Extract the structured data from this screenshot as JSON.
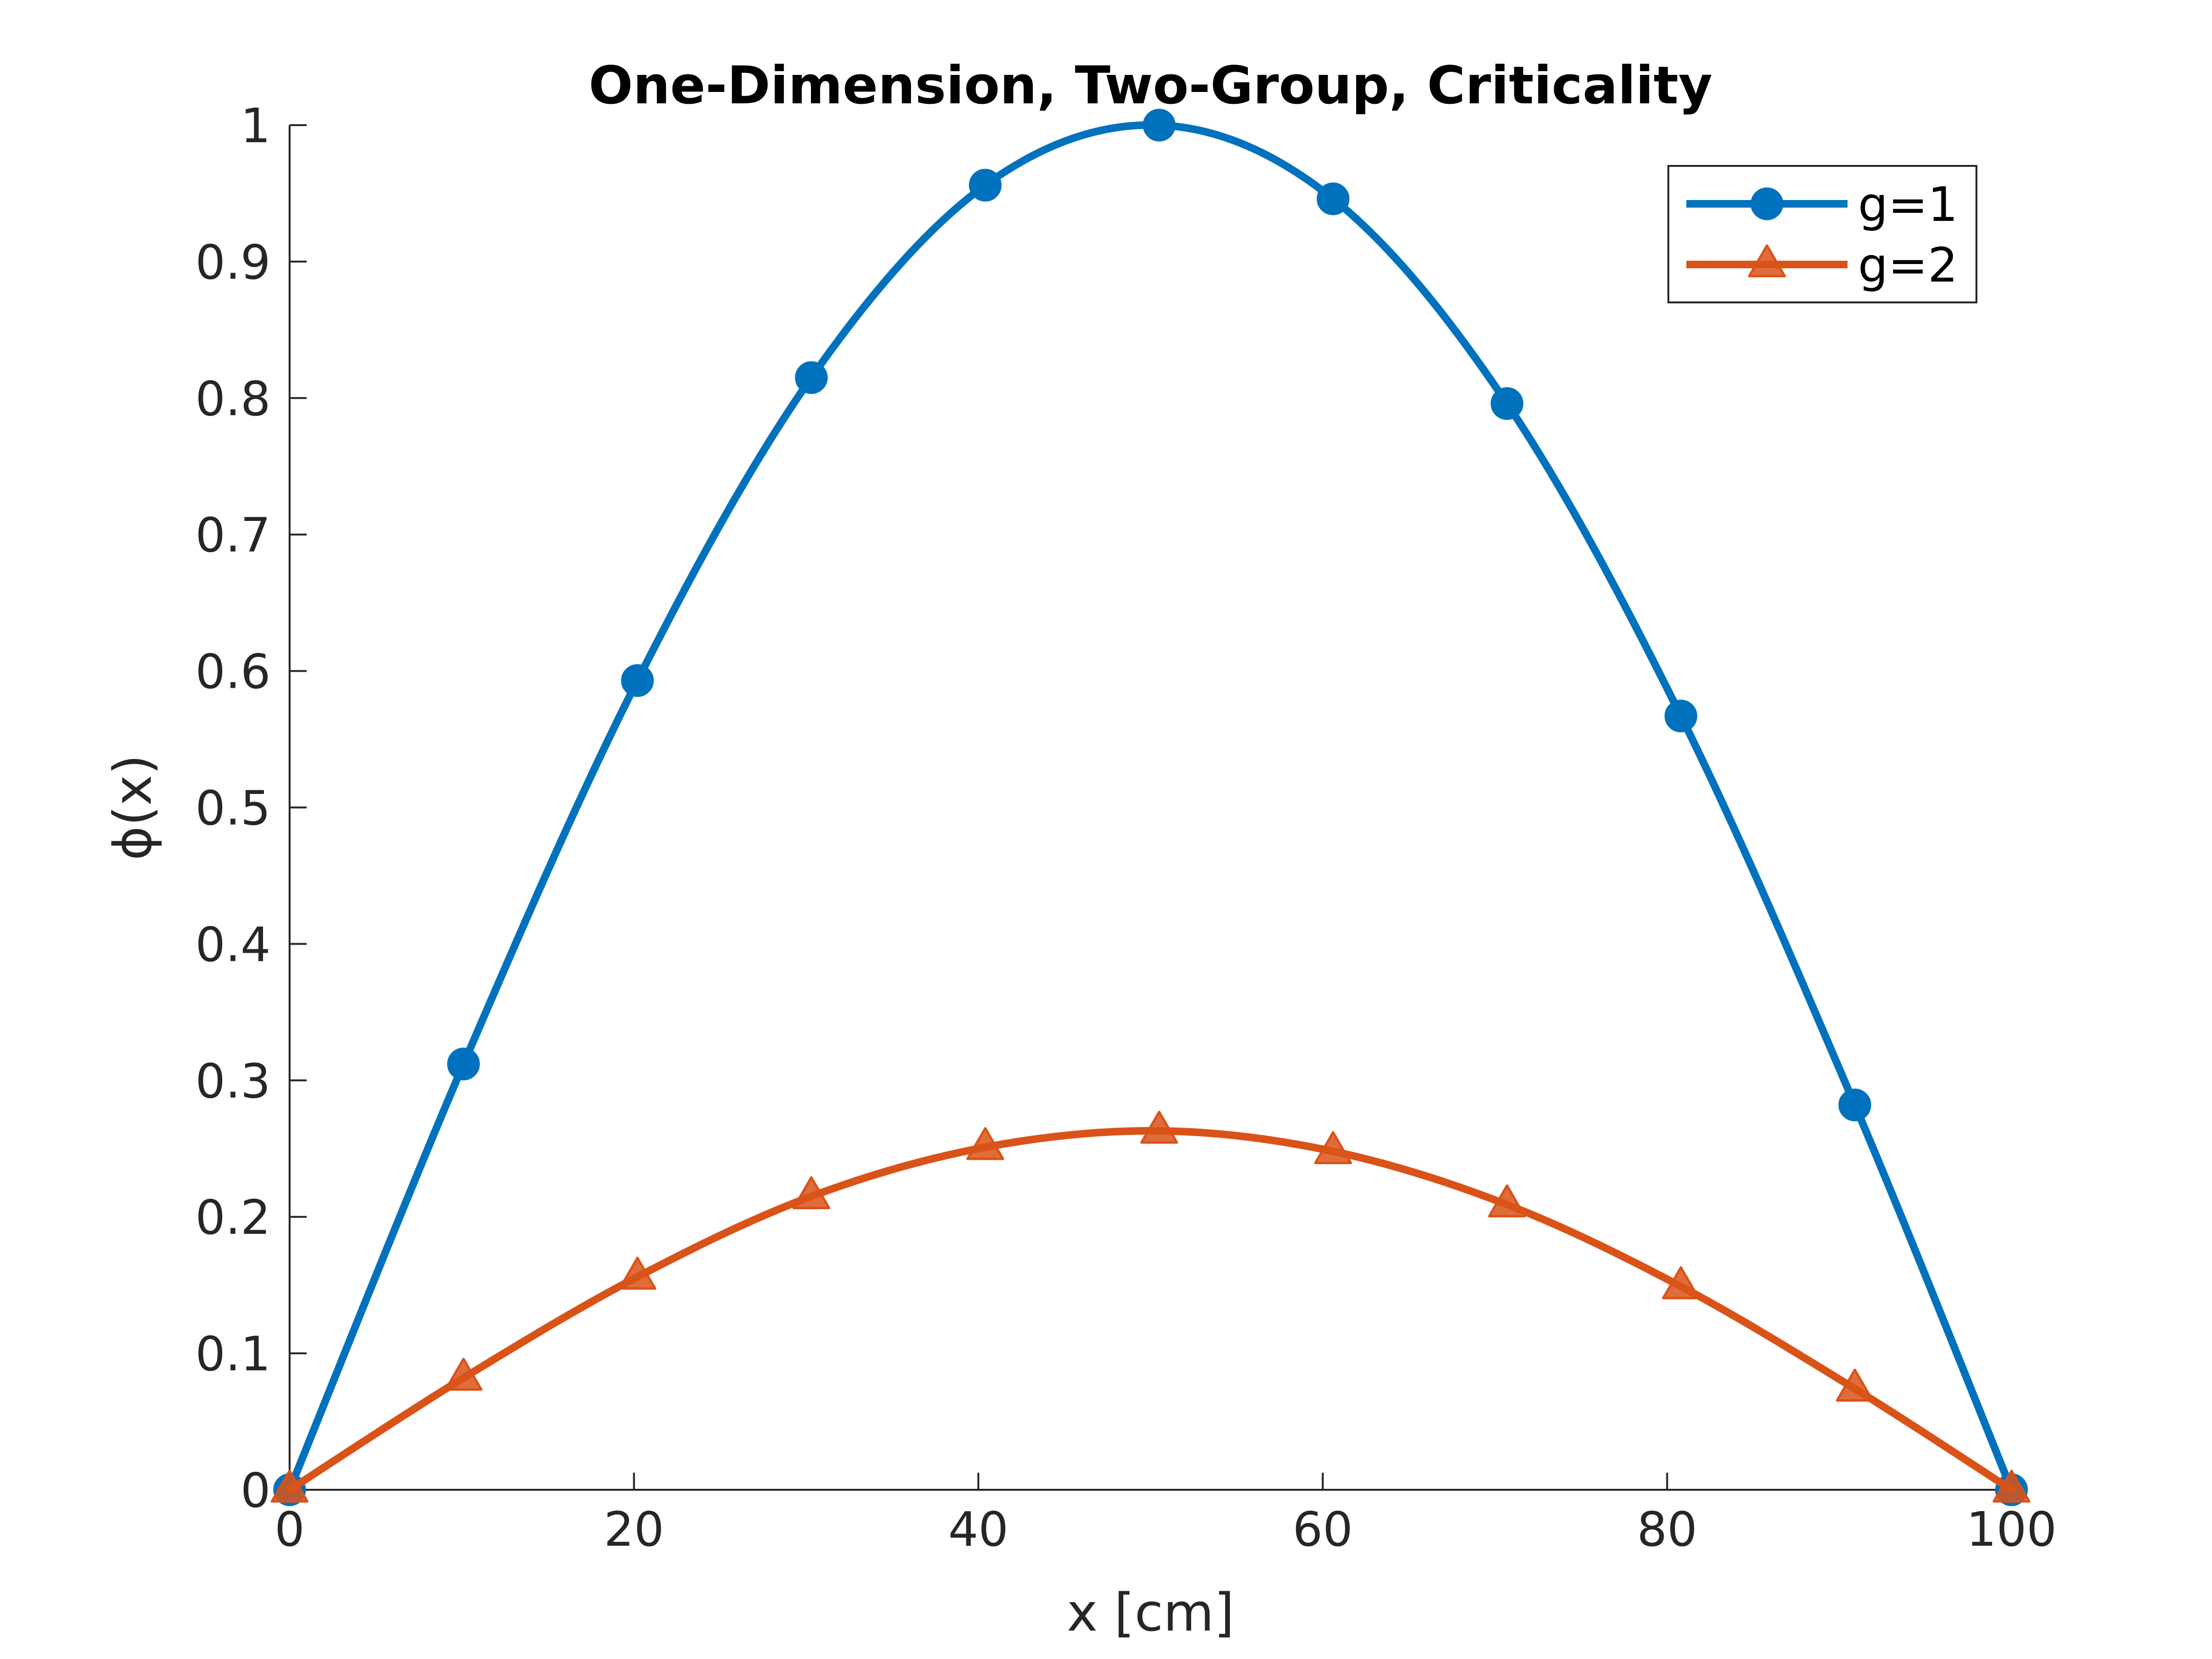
{
  "chart_data": {
    "type": "line",
    "title": "One-Dimension, Two-Group, Criticality",
    "xlabel": "x [cm]",
    "ylabel": "ϕ(x)",
    "xlim": [
      0,
      100
    ],
    "ylim": [
      0,
      1
    ],
    "xticks": [
      0,
      20,
      40,
      60,
      80,
      100
    ],
    "xtick_labels": [
      "0",
      "20",
      "40",
      "60",
      "80",
      "100"
    ],
    "yticks": [
      0,
      0.1,
      0.2,
      0.3,
      0.4,
      0.5,
      0.6,
      0.7,
      0.8,
      0.9,
      1
    ],
    "ytick_labels": [
      "0",
      "0.1",
      "0.2",
      "0.3",
      "0.4",
      "0.5",
      "0.6",
      "0.7",
      "0.8",
      "0.9",
      "1"
    ],
    "grid": false,
    "legend_position": "top-right",
    "series": [
      {
        "name": "g=1",
        "color": "#0072BD",
        "marker": "circle",
        "x": [
          0,
          10.1,
          20.2,
          30.3,
          40.4,
          50.5,
          60.6,
          70.7,
          80.8,
          90.9,
          100
        ],
        "y": [
          0,
          0.312,
          0.593,
          0.815,
          0.956,
          1.0,
          0.946,
          0.796,
          0.567,
          0.282,
          0
        ]
      },
      {
        "name": "g=2",
        "color": "#D95319",
        "marker": "triangle",
        "x": [
          0,
          10.1,
          20.2,
          30.3,
          40.4,
          50.5,
          60.6,
          70.7,
          80.8,
          90.9,
          100
        ],
        "y": [
          0,
          0.082,
          0.156,
          0.215,
          0.251,
          0.263,
          0.248,
          0.209,
          0.149,
          0.074,
          0
        ]
      }
    ]
  }
}
